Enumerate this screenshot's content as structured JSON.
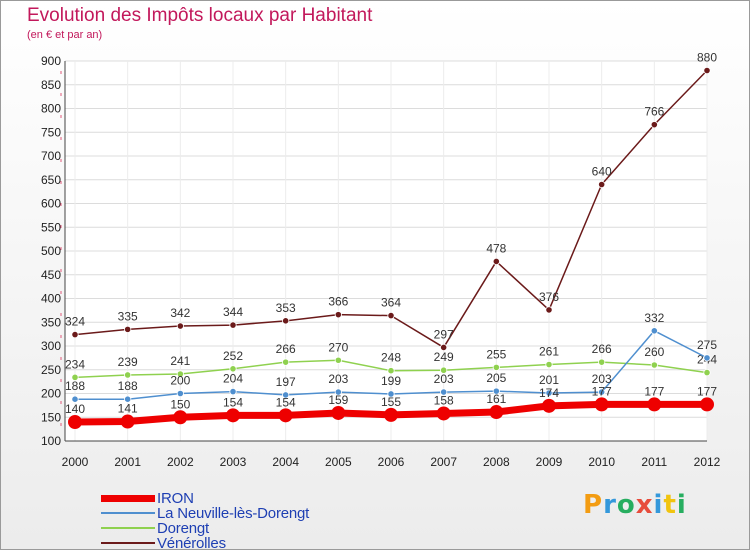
{
  "header": {
    "title": "Evolution des Impôts locaux par Habitant",
    "subtitle": "(en € et par an)"
  },
  "logo": {
    "text": "Proxiti",
    "letters": [
      {
        "ch": "P",
        "color": "#f39c12"
      },
      {
        "ch": "r",
        "color": "#3498db"
      },
      {
        "ch": "o",
        "color": "#27ae60"
      },
      {
        "ch": "x",
        "color": "#e74c3c"
      },
      {
        "ch": "i",
        "color": "#3498db"
      },
      {
        "ch": "t",
        "color": "#f1c40f"
      },
      {
        "ch": "i",
        "color": "#27ae60"
      }
    ]
  },
  "chart_data": {
    "type": "line",
    "title": "Evolution des Impôts locaux par Habitant",
    "subtitle": "(en € et par an)",
    "xlabel": "",
    "ylabel": "",
    "categories": [
      "2000",
      "2001",
      "2002",
      "2003",
      "2004",
      "2005",
      "2006",
      "2007",
      "2008",
      "2009",
      "2010",
      "2011",
      "2012"
    ],
    "ylim": [
      100,
      900
    ],
    "yticks": [
      "100",
      "150",
      "200",
      "250",
      "300",
      "350",
      "400",
      "450",
      "500",
      "550",
      "600",
      "650",
      "700",
      "750",
      "800",
      "850",
      "900"
    ],
    "grid": true,
    "legend_position": "bottom-left",
    "series": [
      {
        "name": "IRON",
        "color": "#ee0000",
        "values": [
          140,
          141,
          150,
          154,
          154,
          159,
          155,
          158,
          161,
          174,
          177,
          177,
          177
        ],
        "labels": [
          "140",
          "141",
          "150",
          "154",
          "154",
          "159",
          "155",
          "158",
          "161",
          "174",
          "177",
          "177",
          "177"
        ],
        "thick": true
      },
      {
        "name": "La Neuville-lès-Dorengt",
        "color": "#4f8fcf",
        "values": [
          188,
          188,
          200,
          204,
          197,
          203,
          199,
          203,
          205,
          201,
          203,
          332,
          275
        ],
        "labels": [
          "188",
          "188",
          "200",
          "204",
          "197",
          "203",
          "199",
          "203",
          "205",
          "201",
          "203",
          "332",
          "275"
        ],
        "thick": false
      },
      {
        "name": "Dorengt",
        "color": "#8fd14f",
        "values": [
          234,
          239,
          241,
          252,
          266,
          270,
          248,
          249,
          255,
          261,
          266,
          260,
          244
        ],
        "labels": [
          "234",
          "239",
          "241",
          "252",
          "266",
          "270",
          "248",
          "249",
          "255",
          "261",
          "266",
          "260",
          "244"
        ],
        "thick": false
      },
      {
        "name": "Vénérolles",
        "color": "#6b1a1a",
        "values": [
          324,
          335,
          342,
          344,
          353,
          366,
          364,
          297,
          478,
          376,
          640,
          766,
          880
        ],
        "labels": [
          "324",
          "335",
          "342",
          "344",
          "353",
          "366",
          "364",
          "297",
          "478",
          "376",
          "640",
          "766",
          "880"
        ],
        "thick": false
      }
    ]
  }
}
